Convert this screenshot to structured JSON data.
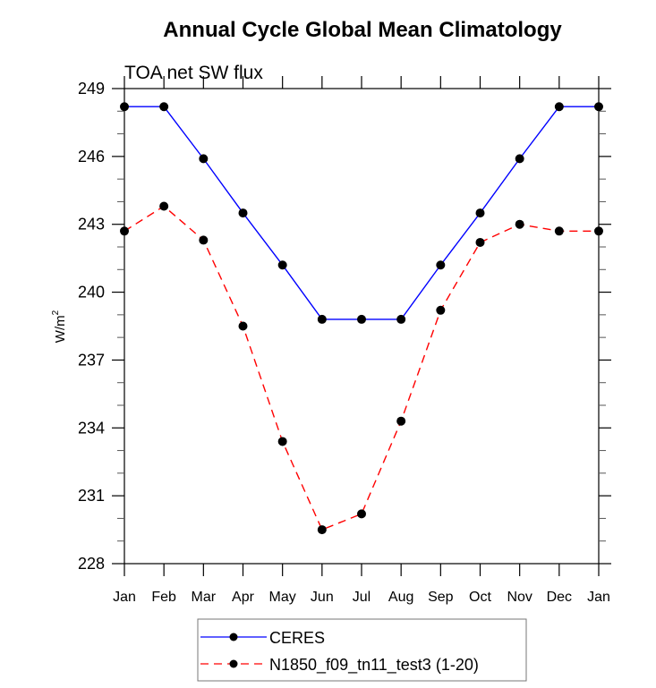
{
  "chart_data": {
    "type": "line",
    "title": "Annual Cycle Global Mean Climatology",
    "subtitle": "TOA net SW flux",
    "xlabel": "",
    "ylabel": "W/m",
    "ylabel_superscript": "2",
    "categories": [
      "Jan",
      "Feb",
      "Mar",
      "Apr",
      "May",
      "Jun",
      "Jul",
      "Aug",
      "Sep",
      "Oct",
      "Nov",
      "Dec",
      "Jan"
    ],
    "ylim": [
      228,
      249
    ],
    "yticks": [
      228,
      231,
      234,
      237,
      240,
      243,
      246,
      249
    ],
    "ytick_labels": [
      "228",
      "231",
      "234",
      "237",
      "240",
      "243",
      "246",
      "249"
    ],
    "y_minor_step": 1,
    "grid": false,
    "legend_position": "bottom-center",
    "series": [
      {
        "name": "CERES",
        "color": "#0000ff",
        "style": "solid",
        "marker": "filled-circle",
        "values": [
          248.2,
          248.2,
          245.9,
          243.5,
          241.2,
          238.8,
          238.8,
          238.8,
          241.2,
          243.5,
          245.9,
          248.2,
          248.2
        ]
      },
      {
        "name": "N1850_f09_tn11_test3 (1-20)",
        "color": "#ff0000",
        "style": "dashed",
        "marker": "filled-circle",
        "values": [
          242.7,
          243.8,
          242.3,
          238.5,
          233.4,
          229.5,
          230.2,
          234.3,
          239.2,
          242.2,
          243.0,
          242.7,
          242.7
        ]
      }
    ]
  }
}
